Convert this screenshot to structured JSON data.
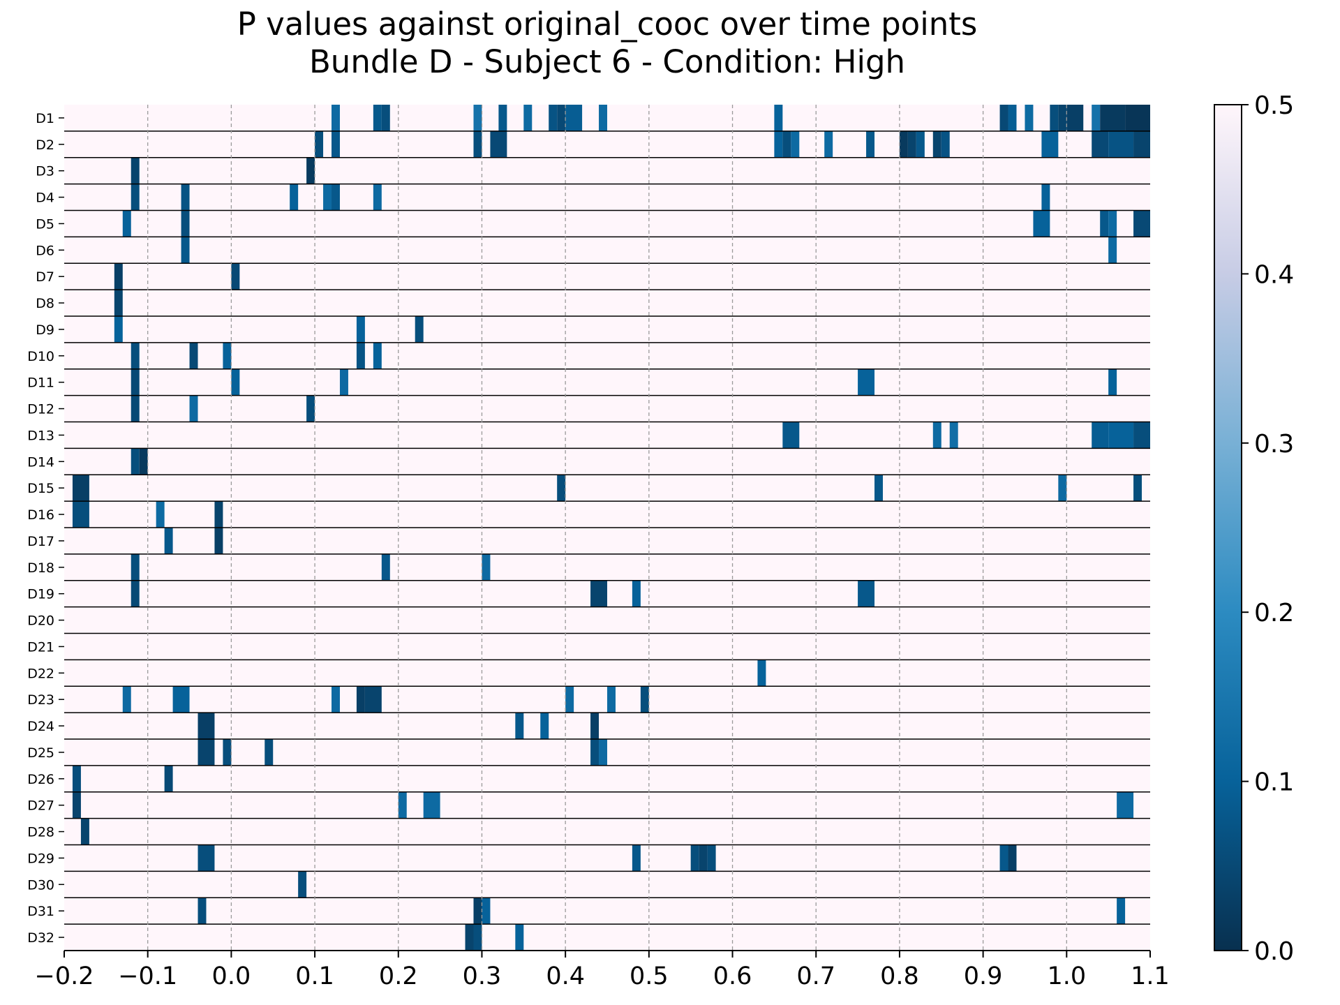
{
  "chart_data": {
    "type": "heatmap",
    "title": [
      "P values against original_cooc over time points",
      "Bundle D - Subject 6 - Condition: High"
    ],
    "xlabel": "",
    "ylabel": "",
    "xlim": [
      -0.2,
      1.1
    ],
    "x_ticks": [
      "−0.2",
      "−0.1",
      "0.0",
      "0.1",
      "0.2",
      "0.3",
      "0.4",
      "0.5",
      "0.6",
      "0.7",
      "0.8",
      "0.9",
      "1.0",
      "1.1"
    ],
    "x_tick_values": [
      -0.2,
      -0.1,
      0.0,
      0.1,
      0.2,
      0.3,
      0.4,
      0.5,
      0.6,
      0.7,
      0.8,
      0.9,
      1.0,
      1.1
    ],
    "grid": "vertical dashed at x ticks",
    "rows": [
      "D1",
      "D2",
      "D3",
      "D4",
      "D5",
      "D6",
      "D7",
      "D8",
      "D9",
      "D10",
      "D11",
      "D12",
      "D13",
      "D14",
      "D15",
      "D16",
      "D17",
      "D18",
      "D19",
      "D20",
      "D21",
      "D22",
      "D23",
      "D24",
      "D25",
      "D26",
      "D27",
      "D28",
      "D29",
      "D30",
      "D31",
      "D32"
    ],
    "cell_width": 0.01,
    "background_value": 0.5,
    "colorbar": {
      "vmin": 0.0,
      "vmax": 0.5,
      "ticks": [
        "0.0",
        "0.1",
        "0.2",
        "0.3",
        "0.4",
        "0.5"
      ],
      "tick_values": [
        0.0,
        0.1,
        0.2,
        0.3,
        0.4,
        0.5
      ],
      "colors": [
        "#08304f",
        "#07629a",
        "#2c8bc1",
        "#78b0d5",
        "#c7cce5",
        "#fff6fb"
      ]
    },
    "cells": {
      "D1": [
        [
          0.12,
          0.13,
          0.12
        ],
        [
          0.17,
          0.18,
          0.08
        ],
        [
          0.18,
          0.19,
          0.06
        ],
        [
          0.29,
          0.3,
          0.14
        ],
        [
          0.32,
          0.33,
          0.08
        ],
        [
          0.35,
          0.36,
          0.12
        ],
        [
          0.38,
          0.39,
          0.07
        ],
        [
          0.39,
          0.4,
          0.05
        ],
        [
          0.4,
          0.42,
          0.09
        ],
        [
          0.44,
          0.45,
          0.12
        ],
        [
          0.65,
          0.66,
          0.1
        ],
        [
          0.92,
          0.93,
          0.05
        ],
        [
          0.93,
          0.94,
          0.09
        ],
        [
          0.95,
          0.96,
          0.12
        ],
        [
          0.98,
          0.99,
          0.06
        ],
        [
          0.99,
          1.0,
          0.04
        ],
        [
          1.0,
          1.02,
          0.03
        ],
        [
          1.03,
          1.04,
          0.14
        ],
        [
          1.04,
          1.07,
          0.02
        ],
        [
          1.07,
          1.1,
          0.01
        ]
      ],
      "D2": [
        [
          0.1,
          0.11,
          0.06
        ],
        [
          0.12,
          0.13,
          0.08
        ],
        [
          0.29,
          0.3,
          0.06
        ],
        [
          0.31,
          0.33,
          0.05
        ],
        [
          0.65,
          0.66,
          0.1
        ],
        [
          0.66,
          0.67,
          0.06
        ],
        [
          0.67,
          0.68,
          0.12
        ],
        [
          0.71,
          0.72,
          0.12
        ],
        [
          0.76,
          0.77,
          0.08
        ],
        [
          0.8,
          0.81,
          0.02
        ],
        [
          0.81,
          0.82,
          0.04
        ],
        [
          0.82,
          0.83,
          0.08
        ],
        [
          0.84,
          0.85,
          0.04
        ],
        [
          0.85,
          0.86,
          0.07
        ],
        [
          0.97,
          0.99,
          0.1
        ],
        [
          1.03,
          1.05,
          0.05
        ],
        [
          1.05,
          1.08,
          0.07
        ],
        [
          1.08,
          1.1,
          0.04
        ]
      ],
      "D3": [
        [
          -0.12,
          -0.11,
          0.04
        ],
        [
          0.09,
          0.1,
          0.02
        ]
      ],
      "D4": [
        [
          -0.12,
          -0.11,
          0.06
        ],
        [
          -0.06,
          -0.05,
          0.07
        ],
        [
          0.07,
          0.08,
          0.1
        ],
        [
          0.11,
          0.12,
          0.12
        ],
        [
          0.12,
          0.13,
          0.08
        ],
        [
          0.17,
          0.18,
          0.12
        ],
        [
          0.97,
          0.98,
          0.1
        ]
      ],
      "D5": [
        [
          -0.13,
          -0.12,
          0.1
        ],
        [
          -0.06,
          -0.05,
          0.06
        ],
        [
          0.96,
          0.98,
          0.1
        ],
        [
          1.04,
          1.05,
          0.08
        ],
        [
          1.05,
          1.06,
          0.12
        ],
        [
          1.08,
          1.1,
          0.05
        ]
      ],
      "D6": [
        [
          -0.06,
          -0.05,
          0.08
        ],
        [
          1.05,
          1.06,
          0.12
        ]
      ],
      "D7": [
        [
          -0.14,
          -0.13,
          0.03
        ],
        [
          0.0,
          0.01,
          0.05
        ]
      ],
      "D8": [
        [
          -0.14,
          -0.13,
          0.04
        ]
      ],
      "D9": [
        [
          -0.14,
          -0.13,
          0.1
        ],
        [
          0.15,
          0.16,
          0.1
        ],
        [
          0.22,
          0.23,
          0.06
        ]
      ],
      "D10": [
        [
          -0.12,
          -0.11,
          0.06
        ],
        [
          -0.05,
          -0.04,
          0.05
        ],
        [
          -0.01,
          0.0,
          0.1
        ],
        [
          0.15,
          0.16,
          0.07
        ],
        [
          0.17,
          0.18,
          0.1
        ]
      ],
      "D11": [
        [
          -0.12,
          -0.11,
          0.05
        ],
        [
          0.0,
          0.01,
          0.1
        ],
        [
          0.13,
          0.14,
          0.12
        ],
        [
          0.75,
          0.77,
          0.1
        ],
        [
          1.05,
          1.06,
          0.1
        ]
      ],
      "D12": [
        [
          -0.12,
          -0.11,
          0.05
        ],
        [
          -0.05,
          -0.04,
          0.12
        ],
        [
          0.09,
          0.1,
          0.06
        ]
      ],
      "D13": [
        [
          0.66,
          0.68,
          0.08
        ],
        [
          0.84,
          0.85,
          0.12
        ],
        [
          0.86,
          0.87,
          0.13
        ],
        [
          1.03,
          1.05,
          0.09
        ],
        [
          1.05,
          1.08,
          0.1
        ],
        [
          1.08,
          1.1,
          0.06
        ]
      ],
      "D14": [
        [
          -0.12,
          -0.11,
          0.06
        ],
        [
          -0.11,
          -0.1,
          0.02
        ]
      ],
      "D15": [
        [
          -0.19,
          -0.17,
          0.03
        ],
        [
          0.39,
          0.4,
          0.06
        ],
        [
          0.77,
          0.78,
          0.08
        ],
        [
          0.99,
          1.0,
          0.12
        ],
        [
          1.08,
          1.09,
          0.06
        ]
      ],
      "D16": [
        [
          -0.19,
          -0.17,
          0.06
        ],
        [
          -0.09,
          -0.08,
          0.12
        ],
        [
          -0.02,
          -0.01,
          0.04
        ]
      ],
      "D17": [
        [
          -0.08,
          -0.07,
          0.08
        ],
        [
          -0.02,
          -0.01,
          0.03
        ]
      ],
      "D18": [
        [
          -0.12,
          -0.11,
          0.06
        ],
        [
          0.18,
          0.19,
          0.08
        ],
        [
          0.3,
          0.31,
          0.12
        ]
      ],
      "D19": [
        [
          -0.12,
          -0.11,
          0.05
        ],
        [
          0.43,
          0.45,
          0.04
        ],
        [
          0.48,
          0.49,
          0.1
        ],
        [
          0.75,
          0.77,
          0.08
        ]
      ],
      "D20": [],
      "D21": [],
      "D22": [
        [
          0.63,
          0.64,
          0.1
        ]
      ],
      "D23": [
        [
          -0.13,
          -0.12,
          0.12
        ],
        [
          -0.07,
          -0.05,
          0.1
        ],
        [
          0.12,
          0.13,
          0.12
        ],
        [
          0.15,
          0.16,
          0.03
        ],
        [
          0.16,
          0.18,
          0.04
        ],
        [
          0.4,
          0.41,
          0.12
        ],
        [
          0.45,
          0.46,
          0.12
        ],
        [
          0.49,
          0.5,
          0.06
        ]
      ],
      "D24": [
        [
          -0.04,
          -0.02,
          0.03
        ],
        [
          0.34,
          0.35,
          0.08
        ],
        [
          0.37,
          0.38,
          0.1
        ],
        [
          0.43,
          0.44,
          0.03
        ]
      ],
      "D25": [
        [
          -0.04,
          -0.02,
          0.04
        ],
        [
          -0.01,
          0.0,
          0.06
        ],
        [
          0.04,
          0.05,
          0.06
        ],
        [
          0.43,
          0.44,
          0.06
        ],
        [
          0.44,
          0.45,
          0.12
        ]
      ],
      "D26": [
        [
          -0.19,
          -0.18,
          0.06
        ],
        [
          -0.08,
          -0.07,
          0.05
        ]
      ],
      "D27": [
        [
          -0.19,
          -0.18,
          0.04
        ],
        [
          0.2,
          0.21,
          0.12
        ],
        [
          0.23,
          0.25,
          0.12
        ],
        [
          1.06,
          1.08,
          0.12
        ]
      ],
      "D28": [
        [
          -0.18,
          -0.17,
          0.04
        ]
      ],
      "D29": [
        [
          -0.04,
          -0.02,
          0.06
        ],
        [
          0.48,
          0.49,
          0.08
        ],
        [
          0.55,
          0.56,
          0.06
        ],
        [
          0.56,
          0.57,
          0.04
        ],
        [
          0.57,
          0.58,
          0.06
        ],
        [
          0.92,
          0.93,
          0.08
        ],
        [
          0.93,
          0.94,
          0.03
        ]
      ],
      "D30": [
        [
          0.08,
          0.09,
          0.06
        ]
      ],
      "D31": [
        [
          -0.04,
          -0.03,
          0.06
        ],
        [
          0.29,
          0.3,
          0.03
        ],
        [
          0.3,
          0.31,
          0.1
        ],
        [
          1.06,
          1.07,
          0.1
        ]
      ],
      "D32": [
        [
          0.28,
          0.29,
          0.04
        ],
        [
          0.29,
          0.3,
          0.06
        ],
        [
          0.34,
          0.35,
          0.1
        ]
      ]
    }
  }
}
